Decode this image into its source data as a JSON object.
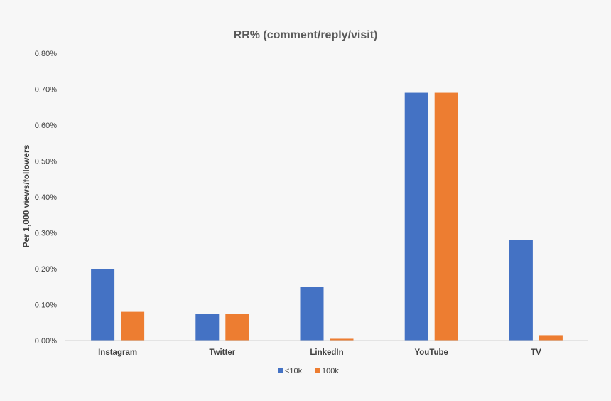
{
  "chart_data": {
    "type": "bar",
    "title": "RR% (comment/reply/visit)",
    "xlabel": "",
    "ylabel": "Per 1,000 views/followers",
    "categories": [
      "Instagram",
      "Twitter",
      "LinkedIn",
      "YouTube",
      "TV"
    ],
    "series": [
      {
        "name": "<10k",
        "color": "#4472c4",
        "values": [
          0.2,
          0.075,
          0.15,
          0.69,
          0.28
        ]
      },
      {
        "name": "100k",
        "color": "#ed7d31",
        "values": [
          0.08,
          0.075,
          0.005,
          0.69,
          0.015
        ]
      }
    ],
    "ylim": [
      0,
      0.8
    ],
    "yticks": [
      "0.00%",
      "0.10%",
      "0.20%",
      "0.30%",
      "0.40%",
      "0.50%",
      "0.60%",
      "0.70%",
      "0.80%"
    ],
    "grid": false,
    "legend_position": "bottom"
  }
}
